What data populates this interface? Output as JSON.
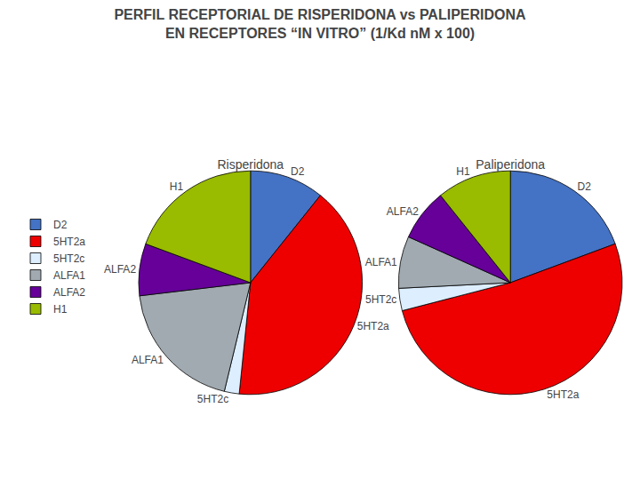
{
  "title": "PERFIL RECEPTORIAL DE RISPERIDONA vs PALIPERIDONA\nEN RECEPTORES “IN VITRO” (1/Kd nM x 100)",
  "chart_data": [
    {
      "type": "pie",
      "title": "Risperidona",
      "categories": [
        "D2",
        "5HT2a",
        "5HT2c",
        "ALFA1",
        "ALFA2",
        "H1"
      ],
      "values": [
        10,
        38,
        2,
        18,
        7,
        18
      ],
      "colors": [
        "#4472C4",
        "#EE0000",
        "#ddeeff",
        "#a0aab0",
        "#660099",
        "#99BB00"
      ],
      "legend": "left"
    },
    {
      "type": "pie",
      "title": "Paliperidona",
      "categories": [
        "D2",
        "5HT2a",
        "5HT2c",
        "ALFA1",
        "ALFA2",
        "H1"
      ],
      "values": [
        18,
        48,
        3,
        7,
        7,
        10
      ],
      "colors": [
        "#4472C4",
        "#EE0000",
        "#ddeeff",
        "#a0aab0",
        "#660099",
        "#99BB00"
      ],
      "legend": "left"
    }
  ]
}
